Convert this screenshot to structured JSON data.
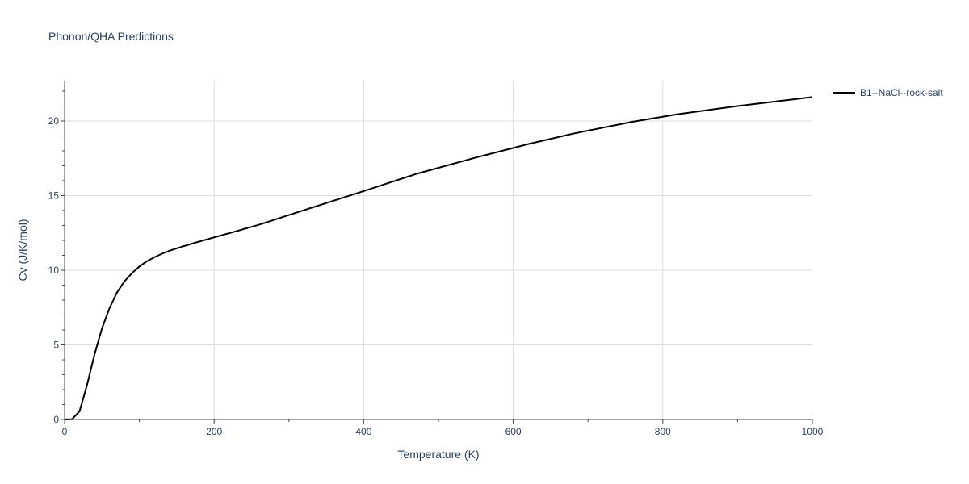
{
  "chart_data": {
    "type": "line",
    "title": "Phonon/QHA Predictions",
    "xlabel": "Temperature (K)",
    "ylabel": "Cv (J/K/mol)",
    "xlim": [
      0,
      1000
    ],
    "ylim": [
      0,
      22.7
    ],
    "xticks": [
      0,
      200,
      400,
      600,
      800,
      1000
    ],
    "yticks": [
      0,
      5,
      10,
      15,
      20
    ],
    "grid": true,
    "legend_position": "top-right",
    "series": [
      {
        "name": "B1--NaCl--rock-salt",
        "color": "#000000",
        "x": [
          0,
          10,
          20,
          30,
          40,
          50,
          60,
          70,
          80,
          90,
          100,
          110,
          120,
          130,
          140,
          150,
          175,
          200,
          225,
          260,
          300,
          350,
          400,
          470,
          550,
          620,
          680,
          760,
          820,
          900,
          1000
        ],
        "y": [
          0,
          0.02,
          0.55,
          2.3,
          4.35,
          6.1,
          7.45,
          8.5,
          9.25,
          9.8,
          10.25,
          10.6,
          10.87,
          11.1,
          11.3,
          11.47,
          11.85,
          12.2,
          12.55,
          13.05,
          13.7,
          14.5,
          15.3,
          16.45,
          17.55,
          18.45,
          19.15,
          19.95,
          20.45,
          21.0,
          21.6
        ]
      }
    ]
  }
}
